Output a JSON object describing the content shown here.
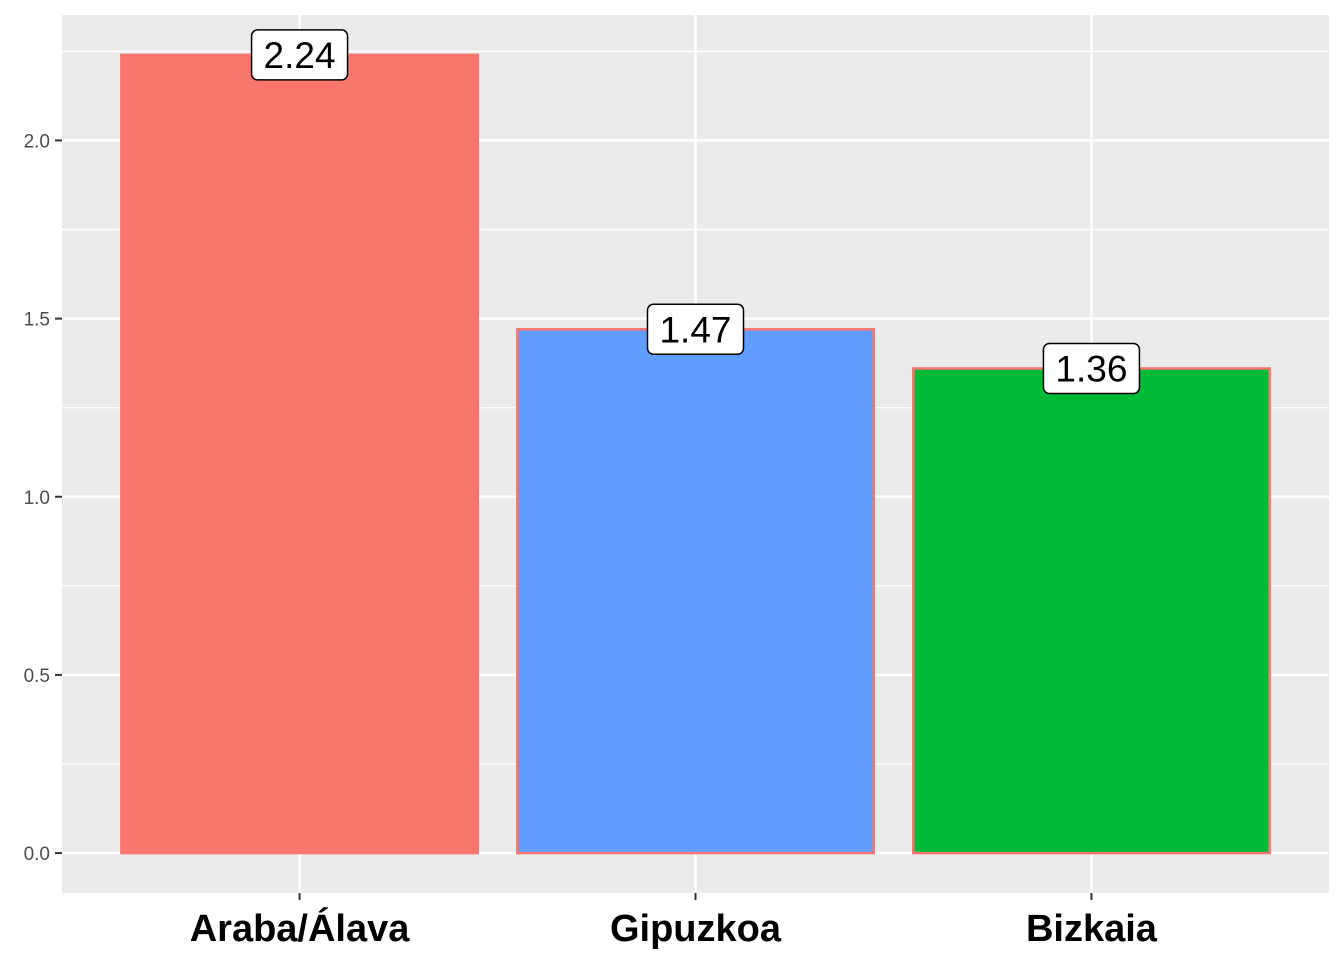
{
  "chart_data": {
    "type": "bar",
    "title": "",
    "xlabel": "",
    "ylabel": "",
    "categories": [
      "Araba/Álava",
      "Gipuzkoa",
      "Bizkaia"
    ],
    "values": [
      2.24,
      1.47,
      1.36
    ],
    "data_labels": [
      "2.24",
      "1.47",
      "1.36"
    ],
    "colors": [
      "#F8766D",
      "#619CFF",
      "#00BA38"
    ],
    "bar_outline_color": "#F8766D",
    "ylim": [
      -0.112,
      2.352
    ],
    "yticks": [
      0.0,
      0.5,
      1.0,
      1.5,
      2.0
    ],
    "ytick_labels": [
      "0.0",
      "0.5",
      "1.0",
      "1.5",
      "2.0"
    ],
    "grid": true,
    "legend": "none",
    "panel_background": "#EBEBEB"
  }
}
